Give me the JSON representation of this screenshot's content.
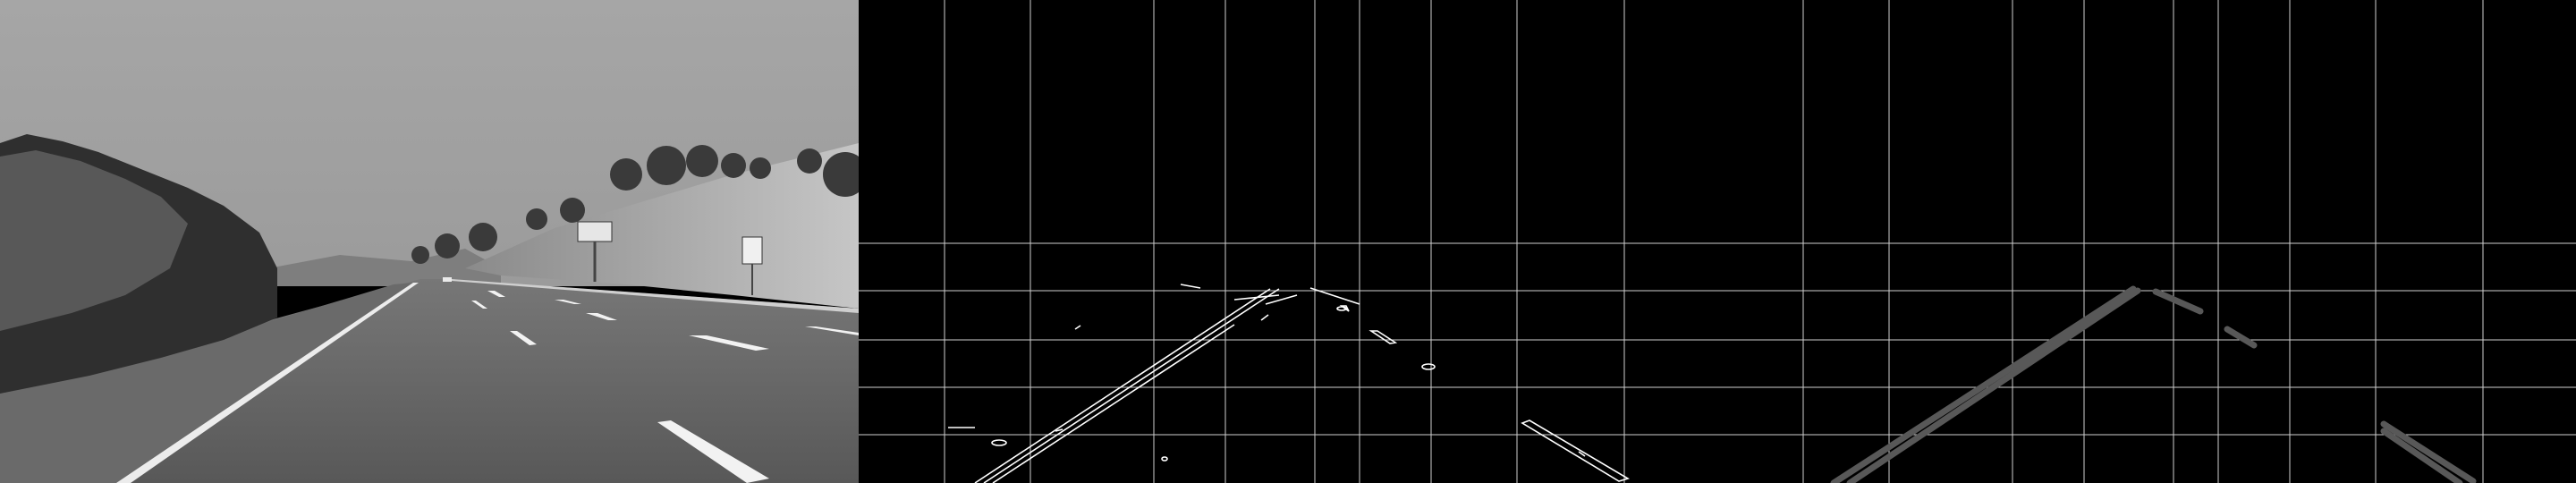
{
  "panels": [
    {
      "name": "grayscale-road"
    },
    {
      "name": "canny-edges"
    },
    {
      "name": "hough-lines"
    }
  ],
  "sign": {
    "label": "",
    "speed_text": ""
  },
  "colors": {
    "sky": "#9a9a9a",
    "asphalt": "#5e5e5e",
    "hillside": "#b6b6b6",
    "trees": "#2e2e2e",
    "edge_white": "#ffffff",
    "hough_gray": "#555555",
    "grid": "#cfcfcf"
  }
}
